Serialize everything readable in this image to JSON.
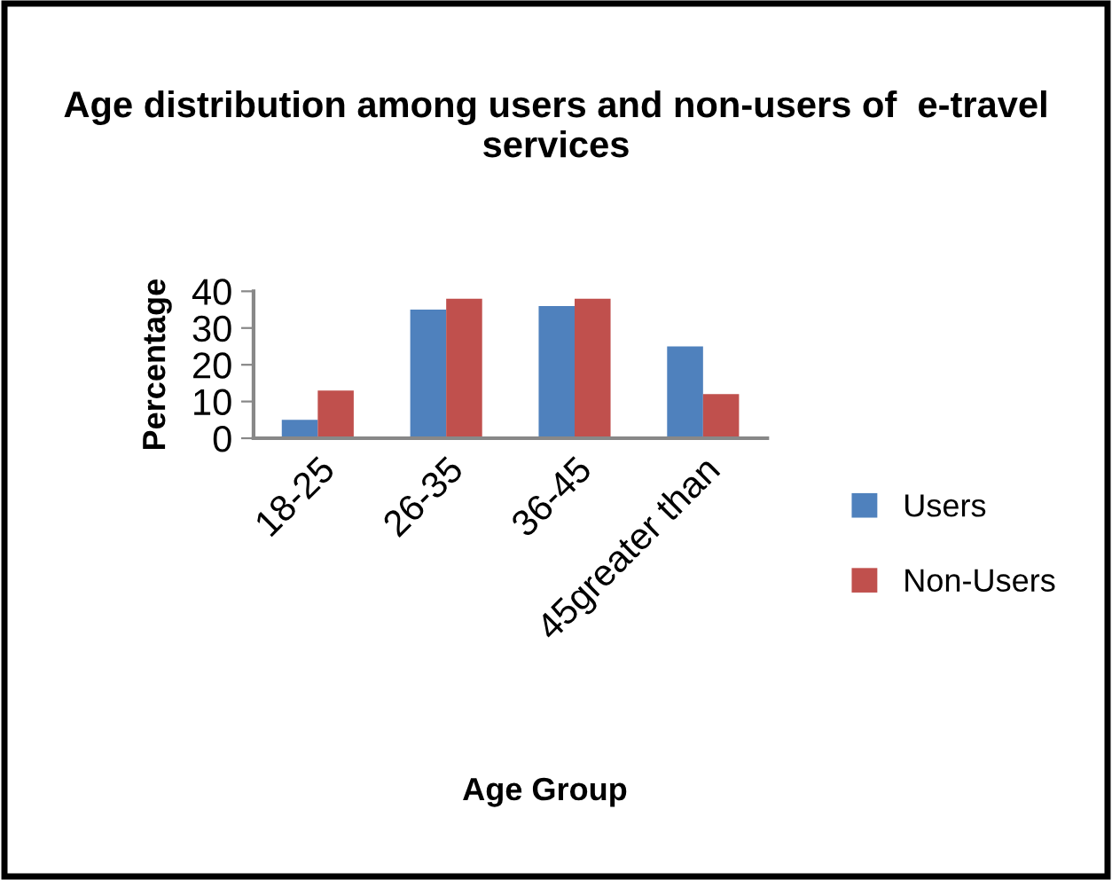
{
  "chart_data": {
    "type": "bar",
    "title": "Age distribution among users and non-users of  e-travel services",
    "xlabel": "Age Group",
    "ylabel": "Percentage",
    "categories": [
      "18-25",
      "26-35",
      "36-45",
      "45greater than"
    ],
    "series": [
      {
        "name": "Users",
        "color": "#4f81bd",
        "values": [
          5,
          35,
          36,
          25
        ]
      },
      {
        "name": "Non-Users",
        "color": "#c0504d",
        "values": [
          13,
          38,
          38,
          12
        ]
      }
    ],
    "ylim": [
      0,
      40
    ],
    "yticks": [
      0,
      10,
      20,
      30,
      40
    ],
    "grid": false,
    "legend": "right"
  }
}
